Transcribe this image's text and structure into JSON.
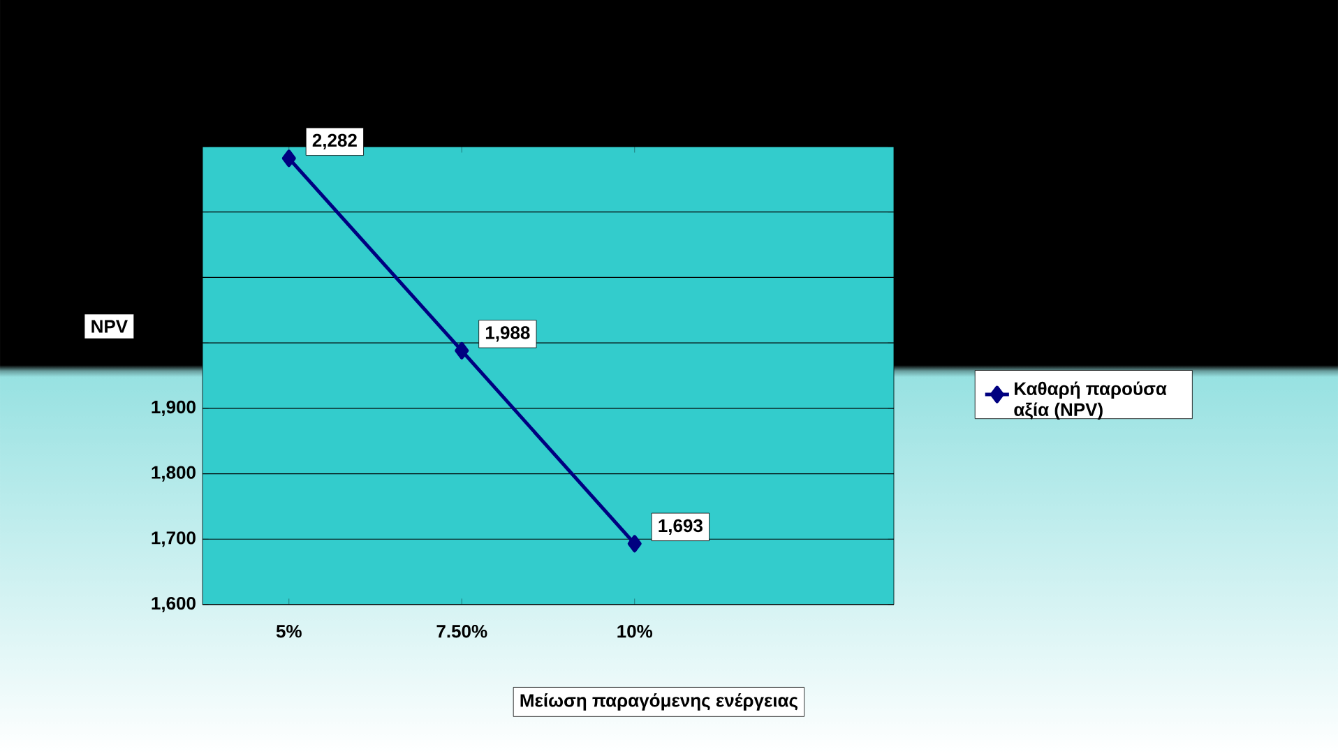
{
  "chart_data": {
    "type": "line",
    "xlabel": "Μείωση παραγόμενης ενέργειας",
    "ylabel": "NPV",
    "categories": [
      "5%",
      "7.50%",
      "10%"
    ],
    "series": [
      {
        "name": "Καθαρή παρούσα αξία (NPV)",
        "color": "#000080",
        "values": [
          2282,
          1988,
          1693
        ],
        "value_labels": [
          "2,282",
          "1,988",
          "1,693"
        ]
      }
    ],
    "ylim": [
      1600,
      2300
    ],
    "yticks": [
      {
        "value": 1600,
        "label": "1,600"
      },
      {
        "value": 1700,
        "label": "1,700"
      },
      {
        "value": 1800,
        "label": "1,800"
      },
      {
        "value": 1900,
        "label": "1,900"
      },
      {
        "value": 2000,
        "label": null
      },
      {
        "value": 2100,
        "label": null
      },
      {
        "value": 2200,
        "label": null
      },
      {
        "value": 2300,
        "label": null
      }
    ],
    "grid": "y",
    "legend": "right",
    "marker": "diamond",
    "line_style": "solid"
  }
}
